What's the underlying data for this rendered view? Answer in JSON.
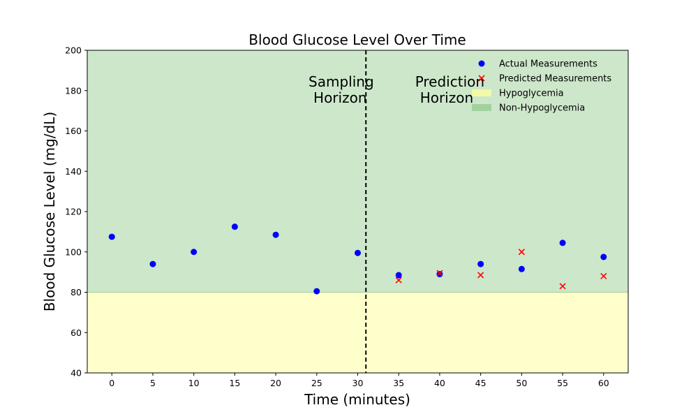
{
  "chart_data": {
    "type": "scatter",
    "title": "Blood Glucose Level Over Time",
    "xlabel": "Time (minutes)",
    "ylabel": "Blood Glucose Level (mg/dL)",
    "xlim": [
      -3,
      63
    ],
    "ylim": [
      40,
      200
    ],
    "x_ticks": [
      0,
      5,
      10,
      15,
      20,
      25,
      30,
      35,
      40,
      45,
      50,
      55,
      60
    ],
    "y_ticks": [
      40,
      60,
      80,
      100,
      120,
      140,
      160,
      180,
      200
    ],
    "grid": false,
    "legend_position": "top-right",
    "series": [
      {
        "name": "Actual Measurements",
        "marker": "circle",
        "color": "#0000ff",
        "points": [
          {
            "x": 0,
            "y": 107.5
          },
          {
            "x": 5,
            "y": 94
          },
          {
            "x": 10,
            "y": 100
          },
          {
            "x": 15,
            "y": 112.5
          },
          {
            "x": 20,
            "y": 108.5
          },
          {
            "x": 25,
            "y": 80.5
          },
          {
            "x": 30,
            "y": 99.5
          },
          {
            "x": 35,
            "y": 88.5
          },
          {
            "x": 40,
            "y": 89
          },
          {
            "x": 45,
            "y": 94
          },
          {
            "x": 50,
            "y": 91.5
          },
          {
            "x": 55,
            "y": 104.5
          },
          {
            "x": 60,
            "y": 97.5
          }
        ]
      },
      {
        "name": "Predicted Measurements",
        "marker": "x",
        "color": "#ff0000",
        "points": [
          {
            "x": 35,
            "y": 86
          },
          {
            "x": 40,
            "y": 89.5
          },
          {
            "x": 45,
            "y": 88.5
          },
          {
            "x": 50,
            "y": 100
          },
          {
            "x": 55,
            "y": 83
          },
          {
            "x": 60,
            "y": 88
          }
        ]
      }
    ],
    "regions": [
      {
        "name": "Hypoglycemia",
        "y_from": 40,
        "y_to": 80,
        "color": "#ffff99"
      },
      {
        "name": "Non-Hypoglycemia",
        "y_from": 80,
        "y_to": 200,
        "color": "#9ccf98"
      }
    ],
    "divider_x": 31,
    "annotations": [
      {
        "lines": [
          "Sampling",
          "Horizon"
        ],
        "x": 24,
        "y": 182
      },
      {
        "lines": [
          "Prediction",
          "Horizon"
        ],
        "x": 37,
        "y": 182
      }
    ]
  }
}
